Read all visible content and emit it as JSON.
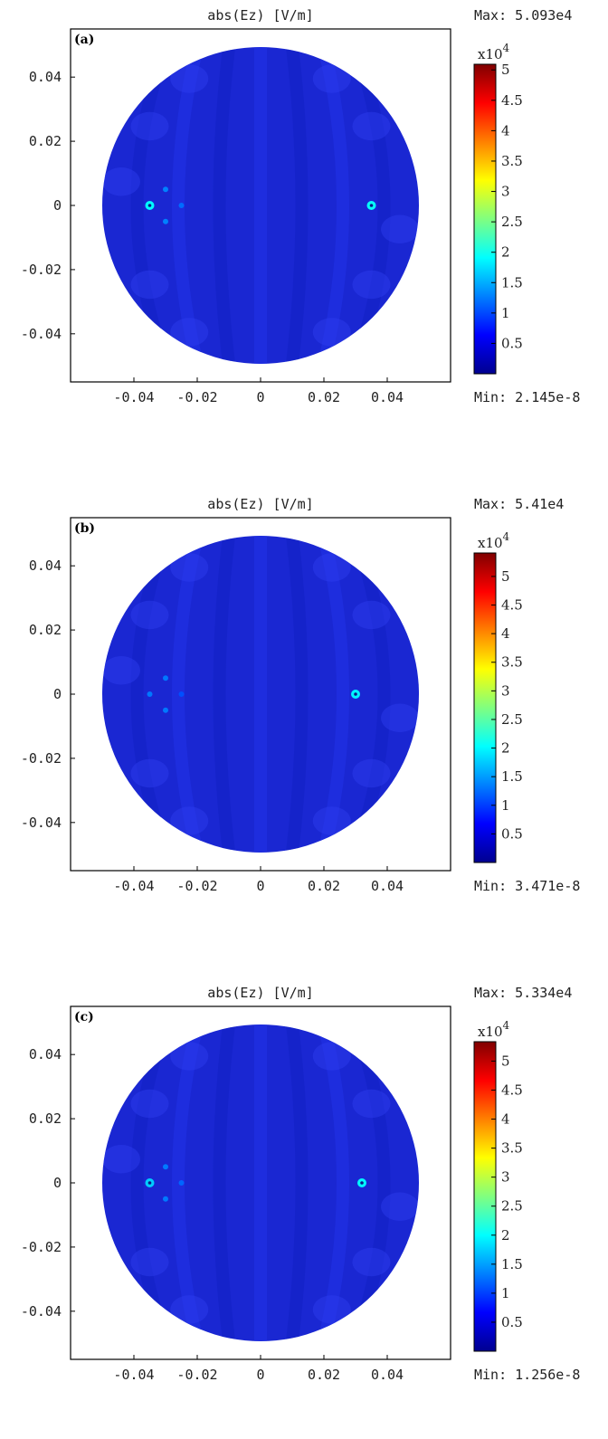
{
  "chart_data": [
    {
      "type": "heatmap",
      "panel_label": "(a)",
      "title": "abs(Ez) [V/m]",
      "max_label": "Max: 5.093e4",
      "min_label": "Min: 2.145e-8",
      "xlim": [
        -0.06,
        0.06
      ],
      "ylim": [
        -0.055,
        0.055
      ],
      "xticks": [
        -0.04,
        -0.02,
        0,
        0.02,
        0.04
      ],
      "xtick_labels": [
        "-0.04",
        "-0.02",
        "0",
        "0.02",
        "0.04"
      ],
      "yticks": [
        0.04,
        0.02,
        0,
        -0.02,
        -0.04
      ],
      "ytick_labels": [
        "0.04",
        "0.02",
        "0",
        "-0.02",
        "-0.04"
      ],
      "domain_radius": 0.05,
      "colorbar": {
        "exponent_label": "x10",
        "exponent_sup": "4",
        "range": [
          0,
          5.093
        ],
        "ticks": [
          0.5,
          1,
          1.5,
          2,
          2.5,
          3,
          3.5,
          4,
          4.5,
          5
        ],
        "tick_labels": [
          "0.5",
          "1",
          "1.5",
          "2",
          "2.5",
          "3",
          "3.5",
          "4",
          "4.5",
          "5"
        ]
      },
      "hotspots": [
        {
          "x": -0.035,
          "y": 0,
          "value": 2.5
        },
        {
          "x": -0.03,
          "y": 0.005,
          "value": 1.4
        },
        {
          "x": -0.03,
          "y": -0.005,
          "value": 1.4
        },
        {
          "x": -0.025,
          "y": 0,
          "value": 1.2
        },
        {
          "x": 0.035,
          "y": 0,
          "value": 2.6
        }
      ]
    },
    {
      "type": "heatmap",
      "panel_label": "(b)",
      "title": "abs(Ez) [V/m]",
      "max_label": "Max: 5.41e4",
      "min_label": "Min: 3.471e-8",
      "xlim": [
        -0.06,
        0.06
      ],
      "ylim": [
        -0.055,
        0.055
      ],
      "xticks": [
        -0.04,
        -0.02,
        0,
        0.02,
        0.04
      ],
      "xtick_labels": [
        "-0.04",
        "-0.02",
        "0",
        "0.02",
        "0.04"
      ],
      "yticks": [
        0.04,
        0.02,
        0,
        -0.02,
        -0.04
      ],
      "ytick_labels": [
        "0.04",
        "0.02",
        "0",
        "-0.02",
        "-0.04"
      ],
      "domain_radius": 0.05,
      "colorbar": {
        "exponent_label": "x10",
        "exponent_sup": "4",
        "range": [
          0,
          5.41
        ],
        "ticks": [
          0.5,
          1,
          1.5,
          2,
          2.5,
          3,
          3.5,
          4,
          4.5,
          5
        ],
        "tick_labels": [
          "0.5",
          "1",
          "1.5",
          "2",
          "2.5",
          "3",
          "3.5",
          "4",
          "4.5",
          "5"
        ]
      },
      "hotspots": [
        {
          "x": -0.035,
          "y": 0,
          "value": 1.4
        },
        {
          "x": -0.03,
          "y": 0.005,
          "value": 1.4
        },
        {
          "x": -0.03,
          "y": -0.005,
          "value": 1.4
        },
        {
          "x": -0.025,
          "y": 0,
          "value": 1.0
        },
        {
          "x": 0.03,
          "y": 0,
          "value": 2.6
        }
      ]
    },
    {
      "type": "heatmap",
      "panel_label": "(c)",
      "title": "abs(Ez) [V/m]",
      "max_label": "Max: 5.334e4",
      "min_label": "Min: 1.256e-8",
      "xlim": [
        -0.06,
        0.06
      ],
      "ylim": [
        -0.055,
        0.055
      ],
      "xticks": [
        -0.04,
        -0.02,
        0,
        0.02,
        0.04
      ],
      "xtick_labels": [
        "-0.04",
        "-0.02",
        "0",
        "0.02",
        "0.04"
      ],
      "yticks": [
        0.04,
        0.02,
        0,
        -0.02,
        -0.04
      ],
      "ytick_labels": [
        "0.04",
        "0.02",
        "0",
        "-0.02",
        "-0.04"
      ],
      "domain_radius": 0.05,
      "colorbar": {
        "exponent_label": "x10",
        "exponent_sup": "4",
        "range": [
          0,
          5.334
        ],
        "ticks": [
          0.5,
          1,
          1.5,
          2,
          2.5,
          3,
          3.5,
          4,
          4.5,
          5
        ],
        "tick_labels": [
          "0.5",
          "1",
          "1.5",
          "2",
          "2.5",
          "3",
          "3.5",
          "4",
          "4.5",
          "5"
        ]
      },
      "hotspots": [
        {
          "x": -0.035,
          "y": 0,
          "value": 2.2
        },
        {
          "x": -0.03,
          "y": 0.005,
          "value": 1.4
        },
        {
          "x": -0.03,
          "y": -0.005,
          "value": 1.4
        },
        {
          "x": -0.025,
          "y": 0,
          "value": 1.2
        },
        {
          "x": 0.032,
          "y": 0,
          "value": 2.6
        }
      ]
    }
  ],
  "colors": {
    "field_background": "#1a27d2",
    "frame": "#000000",
    "colormap": [
      "#00008f",
      "#0000ff",
      "#0080ff",
      "#00ffff",
      "#80ff80",
      "#ffff00",
      "#ff8000",
      "#ff0000",
      "#800000"
    ]
  }
}
